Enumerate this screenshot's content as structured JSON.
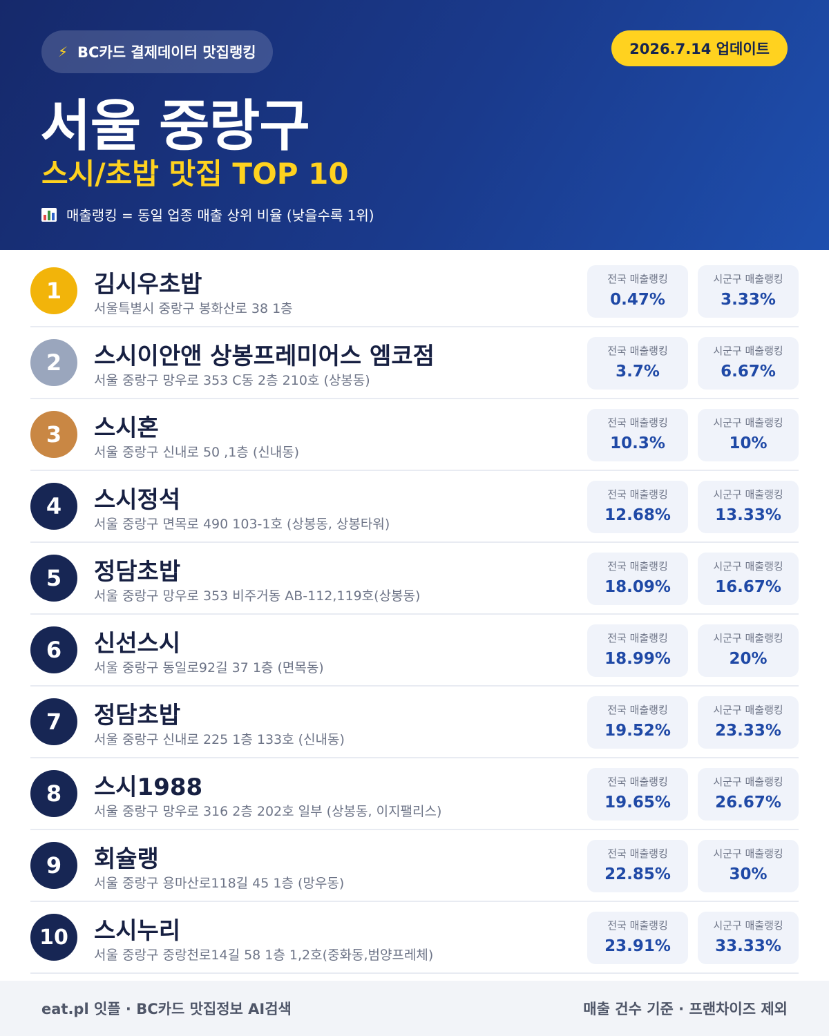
{
  "header": {
    "badge": "BC카드 결제데이터 맛집랭킹",
    "update": "2026.7.14 업데이트",
    "title": "서울 중랑구",
    "subtitle": "스시/초밥 맛집 TOP 10",
    "note": "매출랭킹 = 동일 업종 매출 상위 비율 (낮을수록 1위)",
    "badge_icon": "lightning-icon",
    "note_icon": "bar-chart-icon"
  },
  "labels": {
    "national": "전국 매출랭킹",
    "district": "시군구 매출랭킹"
  },
  "restaurants": [
    {
      "rank": "1",
      "name": "김시우초밥",
      "address": "서울특별시 중랑구 봉화산로 38 1층",
      "national": "0.47%",
      "district": "3.33%"
    },
    {
      "rank": "2",
      "name": "스시이안앤 상봉프레미어스 엠코점",
      "address": "서울 중랑구 망우로 353 C동 2층 210호 (상봉동)",
      "national": "3.7%",
      "district": "6.67%"
    },
    {
      "rank": "3",
      "name": "스시혼",
      "address": "서울 중랑구 신내로 50 ,1층 (신내동)",
      "national": "10.3%",
      "district": "10%"
    },
    {
      "rank": "4",
      "name": "스시정석",
      "address": "서울 중랑구 면목로 490 103-1호 (상봉동, 상봉타워)",
      "national": "12.68%",
      "district": "13.33%"
    },
    {
      "rank": "5",
      "name": "정담초밥",
      "address": "서울 중랑구 망우로 353 비주거동 AB-112,119호(상봉동)",
      "national": "18.09%",
      "district": "16.67%"
    },
    {
      "rank": "6",
      "name": "신선스시",
      "address": "서울 중랑구 동일로92길 37 1층 (면목동)",
      "national": "18.99%",
      "district": "20%"
    },
    {
      "rank": "7",
      "name": "정담초밥",
      "address": "서울 중랑구 신내로 225 1층 133호 (신내동)",
      "national": "19.52%",
      "district": "23.33%"
    },
    {
      "rank": "8",
      "name": "스시1988",
      "address": "서울 중랑구 망우로 316 2층 202호 일부 (상봉동, 이지팰리스)",
      "national": "19.65%",
      "district": "26.67%"
    },
    {
      "rank": "9",
      "name": "회슐랭",
      "address": "서울 중랑구 용마산로118길 45 1층 (망우동)",
      "national": "22.85%",
      "district": "30%"
    },
    {
      "rank": "10",
      "name": "스시누리",
      "address": "서울 중랑구 중랑천로14길 58 1층 1,2호(중화동,범양프레체)",
      "national": "23.91%",
      "district": "33.33%"
    }
  ],
  "footer": {
    "left": "eat.pl 잇플 · BC카드 맛집정보 AI검색",
    "right": "매출 건수 기준 · 프랜차이즈 제외"
  },
  "colors": {
    "header_start": "#16296b",
    "header_end": "#1e4fae",
    "accent_yellow": "#ffd21f",
    "rank_gold": "#f2b40a",
    "rank_silver": "#9aa6bd",
    "rank_bronze": "#c98744",
    "rank_default": "#172654",
    "value_blue": "#1f49a6"
  }
}
